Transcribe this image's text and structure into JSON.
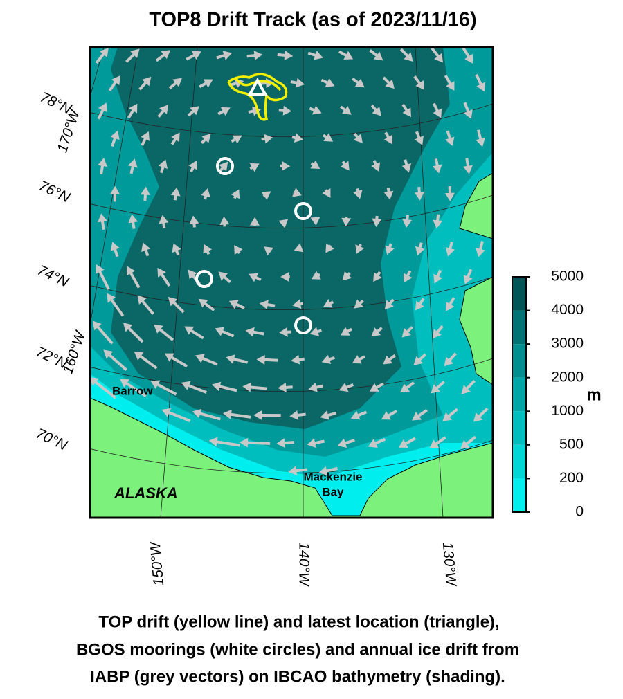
{
  "title": "TOP8 Drift Track (as of 2023/11/16)",
  "map": {
    "lat_labels": [
      "78°N",
      "76°N",
      "74°N",
      "72°N",
      "70°N"
    ],
    "lon_labels_left": [
      "170°W",
      "160°W"
    ],
    "lon_labels_bottom": [
      "150°W",
      "140°W",
      "130°W"
    ],
    "places": {
      "barrow": "Barrow",
      "alaska": "ALASKA",
      "mackenzie_bay": [
        "Mackenzie",
        "Bay"
      ]
    }
  },
  "colorbar": {
    "ticks": [
      0,
      200,
      500,
      1000,
      2000,
      3000,
      4000,
      5000
    ],
    "colors": [
      "#00eeee",
      "#00d6d6",
      "#00bebe",
      "#00a6a6",
      "#008e8e",
      "#007474",
      "#005656"
    ],
    "unit": "m"
  },
  "caption": [
    "TOP drift (yellow line) and latest location (triangle),",
    "BGOS moorings (white circles) and annual ice drift from",
    "IABP (grey vectors) on IBCAO bathymetry (shading)."
  ]
}
